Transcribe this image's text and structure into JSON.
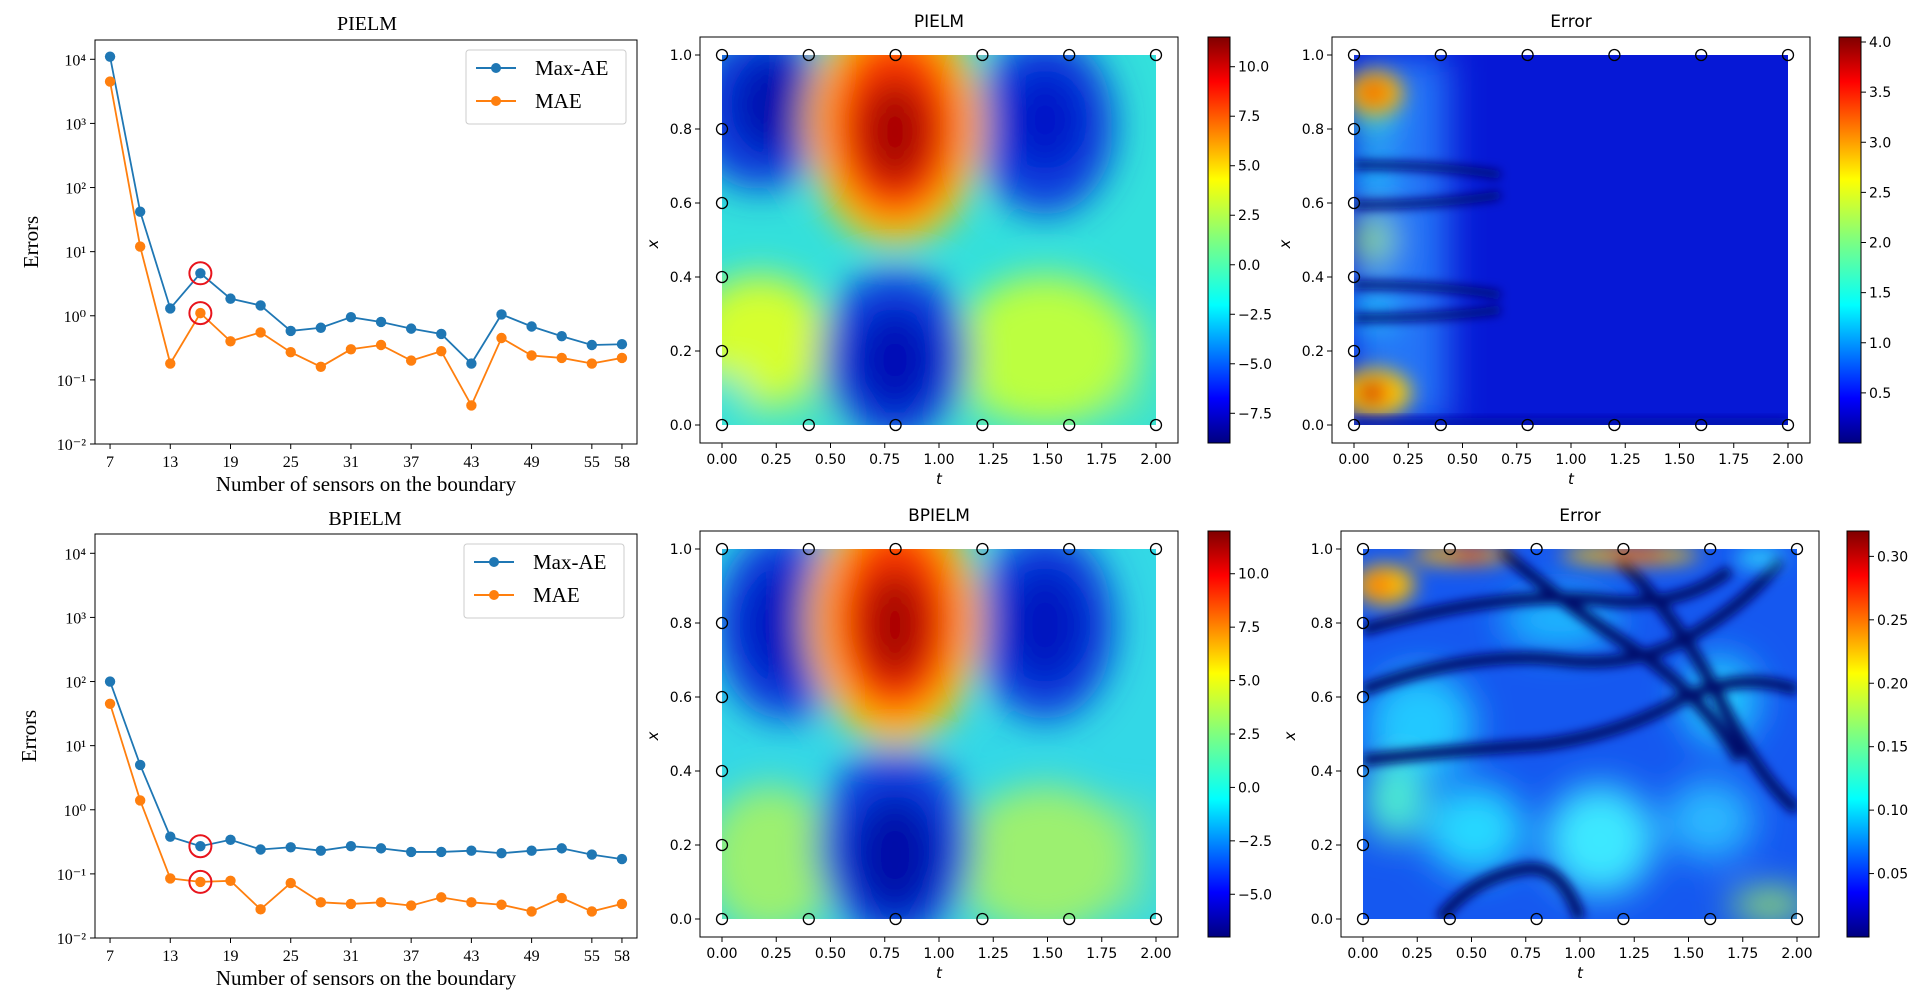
{
  "chart_data": [
    {
      "type": "line",
      "title": "PIELM",
      "xlabel": "Number of sensors on the boundary",
      "ylabel": "Errors",
      "yscale": "log",
      "ylim": [
        0.01,
        20000
      ],
      "xlim": [
        5.5,
        59.5
      ],
      "xticks": [
        7,
        13,
        19,
        25,
        31,
        37,
        43,
        49,
        55,
        58
      ],
      "xtick_labels": [
        "7",
        "13",
        "19",
        "25",
        "31",
        "37",
        "43",
        "49",
        "55",
        "58"
      ],
      "yticks": [
        0.01,
        0.1,
        1,
        10,
        100,
        1000,
        10000
      ],
      "ytick_labels": [
        "10⁻²",
        "10⁻¹",
        "10⁰",
        "10¹",
        "10²",
        "10³",
        "10⁴"
      ],
      "x": [
        7,
        10,
        13,
        16,
        19,
        22,
        25,
        28,
        31,
        34,
        37,
        40,
        43,
        46,
        49,
        52,
        55,
        58
      ],
      "series": [
        {
          "name": "Max-AE",
          "color": "#1f77b4",
          "values": [
            11000,
            42,
            1.3,
            4.6,
            1.85,
            1.45,
            0.58,
            0.65,
            0.95,
            0.8,
            0.63,
            0.52,
            0.18,
            1.05,
            0.68,
            0.48,
            0.35,
            0.36
          ]
        },
        {
          "name": "MAE",
          "color": "#ff7f0e",
          "values": [
            4500,
            12,
            0.18,
            1.1,
            0.4,
            0.55,
            0.27,
            0.16,
            0.3,
            0.35,
            0.2,
            0.28,
            0.04,
            0.45,
            0.24,
            0.22,
            0.18,
            0.22
          ]
        }
      ],
      "highlight_x": 16,
      "legend": "top-right"
    },
    {
      "type": "heatmap",
      "title": "PIELM",
      "xlabel": "t",
      "ylabel": "x",
      "xlim": [
        0,
        2
      ],
      "ylim": [
        0,
        1
      ],
      "xtick_labels": [
        "0.00",
        "0.25",
        "0.50",
        "0.75",
        "1.00",
        "1.25",
        "1.50",
        "1.75",
        "2.00"
      ],
      "ytick_labels": [
        "0.0",
        "0.2",
        "0.4",
        "0.6",
        "0.8",
        "1.0"
      ],
      "colorbar_range": [
        -9,
        11.5
      ],
      "colorbar_ticks": [
        10,
        7.5,
        5,
        2.5,
        0,
        -2.5,
        -5,
        -7.5
      ],
      "colorbar_labels": [
        "10.0",
        "7.5",
        "5.0",
        "2.5",
        "0.0",
        "−2.5",
        "−5.0",
        "−7.5"
      ],
      "sensors": {
        "t": [
          0,
          0.4,
          0.8,
          1.2,
          1.6,
          2.0
        ],
        "x": [
          0,
          0.2,
          0.4,
          0.6,
          0.8,
          1.0
        ]
      }
    },
    {
      "type": "heatmap",
      "title": "Error",
      "xlabel": "t",
      "ylabel": "x",
      "xlim": [
        0,
        2
      ],
      "ylim": [
        0,
        1
      ],
      "xtick_labels": [
        "0.00",
        "0.25",
        "0.50",
        "0.75",
        "1.00",
        "1.25",
        "1.50",
        "1.75",
        "2.00"
      ],
      "ytick_labels": [
        "0.0",
        "0.2",
        "0.4",
        "0.6",
        "0.8",
        "1.0"
      ],
      "colorbar_range": [
        0,
        4.05
      ],
      "colorbar_ticks": [
        4.0,
        3.5,
        3.0,
        2.5,
        2.0,
        1.5,
        1.0,
        0.5
      ],
      "colorbar_labels": [
        "4.0",
        "3.5",
        "3.0",
        "2.5",
        "2.0",
        "1.5",
        "1.0",
        "0.5"
      ],
      "sensors": {
        "t": [
          0,
          0.4,
          0.8,
          1.2,
          1.6,
          2.0
        ],
        "x": [
          0,
          0.2,
          0.4,
          0.6,
          0.8,
          1.0
        ]
      }
    },
    {
      "type": "line",
      "title": "BPIELM",
      "xlabel": "Number of sensors on the boundary",
      "ylabel": "Errors",
      "yscale": "log",
      "ylim": [
        0.01,
        20000
      ],
      "xlim": [
        5.5,
        59.5
      ],
      "xticks": [
        7,
        13,
        19,
        25,
        31,
        37,
        43,
        49,
        55,
        58
      ],
      "xtick_labels": [
        "7",
        "13",
        "19",
        "25",
        "31",
        "37",
        "43",
        "49",
        "55",
        "58"
      ],
      "yticks": [
        0.01,
        0.1,
        1,
        10,
        100,
        1000,
        10000
      ],
      "ytick_labels": [
        "10⁻²",
        "10⁻¹",
        "10⁰",
        "10¹",
        "10²",
        "10³",
        "10⁴"
      ],
      "x": [
        7,
        10,
        13,
        16,
        19,
        22,
        25,
        28,
        31,
        34,
        37,
        40,
        43,
        46,
        49,
        52,
        55,
        58
      ],
      "series": [
        {
          "name": "Max-AE",
          "color": "#1f77b4",
          "values": [
            100,
            5,
            0.38,
            0.27,
            0.34,
            0.24,
            0.26,
            0.23,
            0.27,
            0.25,
            0.22,
            0.22,
            0.23,
            0.21,
            0.23,
            0.25,
            0.2,
            0.17
          ]
        },
        {
          "name": "MAE",
          "color": "#ff7f0e",
          "values": [
            45,
            1.4,
            0.085,
            0.075,
            0.078,
            0.028,
            0.072,
            0.036,
            0.034,
            0.036,
            0.032,
            0.043,
            0.036,
            0.033,
            0.026,
            0.042,
            0.026,
            0.034
          ]
        }
      ],
      "highlight_x": 16,
      "legend": "top-right"
    },
    {
      "type": "heatmap",
      "title": "BPIELM",
      "xlabel": "t",
      "ylabel": "x",
      "xlim": [
        0,
        2
      ],
      "ylim": [
        0,
        1
      ],
      "xtick_labels": [
        "0.00",
        "0.25",
        "0.50",
        "0.75",
        "1.00",
        "1.25",
        "1.50",
        "1.75",
        "2.00"
      ],
      "ytick_labels": [
        "0.0",
        "0.2",
        "0.4",
        "0.6",
        "0.8",
        "1.0"
      ],
      "colorbar_range": [
        -7,
        12
      ],
      "colorbar_ticks": [
        10,
        7.5,
        5,
        2.5,
        0,
        -2.5,
        -5
      ],
      "colorbar_labels": [
        "10.0",
        "7.5",
        "5.0",
        "2.5",
        "0.0",
        "−2.5",
        "−5.0"
      ],
      "sensors": {
        "t": [
          0,
          0.4,
          0.8,
          1.2,
          1.6,
          2.0
        ],
        "x": [
          0,
          0.2,
          0.4,
          0.6,
          0.8,
          1.0
        ]
      }
    },
    {
      "type": "heatmap",
      "title": "Error",
      "xlabel": "t",
      "ylabel": "x",
      "xlim": [
        0,
        2
      ],
      "ylim": [
        0,
        1
      ],
      "xtick_labels": [
        "0.00",
        "0.25",
        "0.50",
        "0.75",
        "1.00",
        "1.25",
        "1.50",
        "1.75",
        "2.00"
      ],
      "ytick_labels": [
        "0.0",
        "0.2",
        "0.4",
        "0.6",
        "0.8",
        "1.0"
      ],
      "colorbar_range": [
        0,
        0.32
      ],
      "colorbar_ticks": [
        0.3,
        0.25,
        0.2,
        0.15,
        0.1,
        0.05
      ],
      "colorbar_labels": [
        "0.30",
        "0.25",
        "0.20",
        "0.15",
        "0.10",
        "0.05"
      ],
      "sensors": {
        "t": [
          0,
          0.4,
          0.8,
          1.2,
          1.6,
          2.0
        ],
        "x": [
          0,
          0.2,
          0.4,
          0.6,
          0.8,
          1.0
        ]
      }
    }
  ]
}
